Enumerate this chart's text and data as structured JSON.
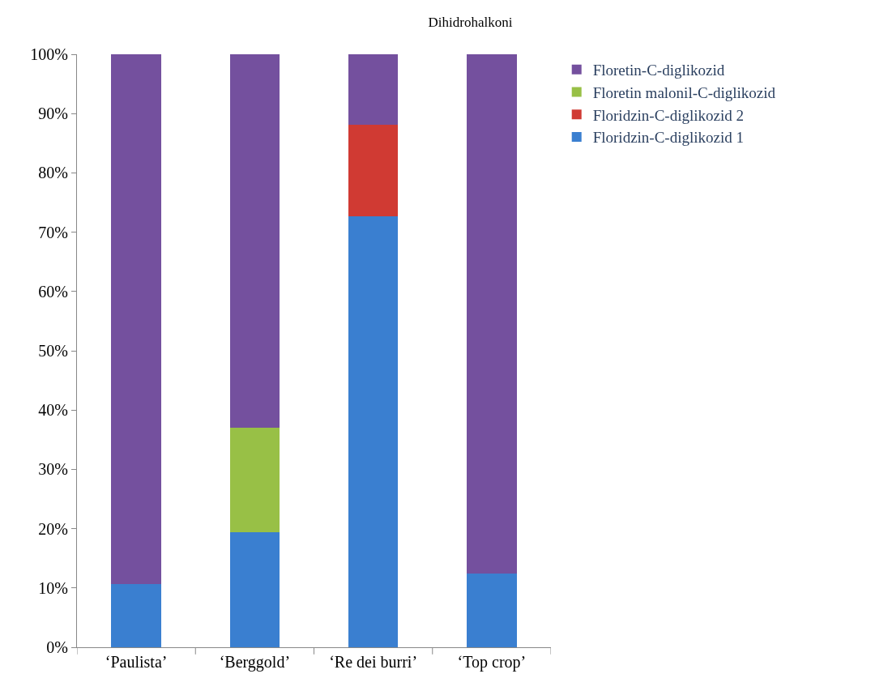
{
  "chart_data": {
    "type": "bar",
    "title": "Dihidrohalkoni",
    "stacked": true,
    "categories": [
      "‘Paulista’",
      "‘Berggold’",
      "‘Re dei burri’",
      "‘Top crop’"
    ],
    "series": [
      {
        "name": "Floridzin-C-diglikozid 1",
        "color": "#3a7fd0",
        "values": [
          10.7,
          19.4,
          72.7,
          12.4
        ]
      },
      {
        "name": "Floridzin-C-diglikozid 2",
        "color": "#d03a33",
        "values": [
          0,
          0,
          15.4,
          0
        ]
      },
      {
        "name": "Floretin malonil-C-diglikozid",
        "color": "#98c046",
        "values": [
          0,
          17.6,
          0,
          0
        ]
      },
      {
        "name": "Floretin-C-diglikozid",
        "color": "#74509e",
        "values": [
          89.3,
          63.0,
          11.9,
          87.6
        ]
      }
    ],
    "ylim": [
      0,
      100
    ],
    "yticks": [
      {
        "value": 0,
        "label": "0%"
      },
      {
        "value": 10,
        "label": "10%"
      },
      {
        "value": 20,
        "label": "20%"
      },
      {
        "value": 30,
        "label": "30%"
      },
      {
        "value": 40,
        "label": "40%"
      },
      {
        "value": 50,
        "label": "50%"
      },
      {
        "value": 60,
        "label": "60%"
      },
      {
        "value": 70,
        "label": "70%"
      },
      {
        "value": 80,
        "label": "80%"
      },
      {
        "value": 90,
        "label": "90%"
      },
      {
        "value": 100,
        "label": "100%"
      }
    ],
    "grid": false,
    "legend": "right"
  }
}
